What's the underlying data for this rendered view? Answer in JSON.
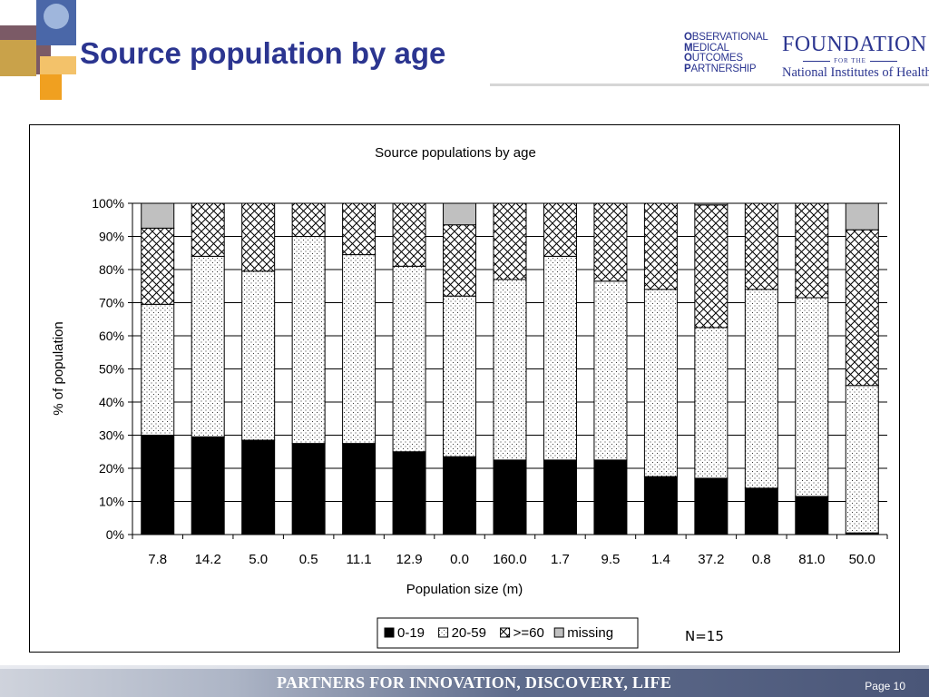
{
  "slide": {
    "title": "Source population by age",
    "tagline": "PARTNERS FOR INNOVATION, DISCOVERY, LIFE",
    "page": "Page 10"
  },
  "logos": {
    "omop": {
      "lines": [
        {
          "initial": "O",
          "rest": "BSERVATIONAL"
        },
        {
          "initial": "M",
          "rest": "EDICAL"
        },
        {
          "initial": "O",
          "rest": "UTCOMES"
        },
        {
          "initial": "P",
          "rest": "ARTNERSHIP"
        }
      ]
    },
    "fnih": {
      "name": "FOUNDATION",
      "for": "FOR THE",
      "institute": "National Institutes of Health"
    }
  },
  "colors": {
    "title": "#2b3590",
    "age_0_19": "#000000",
    "age_20_59": "#ffffff",
    "age_60_plus": "#ffffff",
    "missing": "#c0c0c0"
  },
  "chart_data": {
    "type": "bar",
    "stacked": "percent",
    "title": "Source populations by age",
    "xlabel": "Population size (m)",
    "ylabel": "% of population",
    "ylim": [
      0,
      100
    ],
    "yticks": [
      "0%",
      "10%",
      "20%",
      "30%",
      "40%",
      "50%",
      "60%",
      "70%",
      "80%",
      "90%",
      "100%"
    ],
    "categories": [
      "7.8",
      "14.2",
      "5.0",
      "0.5",
      "11.1",
      "12.9",
      "0.0",
      "160.0",
      "1.7",
      "9.5",
      "1.4",
      "37.2",
      "0.8",
      "81.0",
      "50.0"
    ],
    "series": [
      {
        "name": "0-19",
        "pattern": "solid-black",
        "values": [
          30,
          29.5,
          28.5,
          27.5,
          27.5,
          25,
          23.5,
          22.5,
          22.5,
          22.5,
          17.5,
          17,
          14,
          11.5,
          0.5
        ]
      },
      {
        "name": "20-59",
        "pattern": "dots",
        "values": [
          39.5,
          54.5,
          51,
          62.5,
          57,
          56,
          48.5,
          54.5,
          61.5,
          54,
          56.5,
          45.5,
          60,
          60,
          44.5
        ]
      },
      {
        "name": ">=60",
        "pattern": "crosshatch",
        "values": [
          23,
          16,
          20.5,
          10,
          15.5,
          19,
          21.5,
          23,
          16,
          23.5,
          26,
          37,
          26,
          28.5,
          47
        ]
      },
      {
        "name": "missing",
        "pattern": "solid-gray",
        "values": [
          7.5,
          0,
          0,
          0,
          0,
          0,
          6.5,
          0,
          0,
          0,
          0,
          0.5,
          0,
          0,
          8
        ]
      }
    ],
    "legend_position": "bottom",
    "grid": "horizontal",
    "annotation": "N=15"
  }
}
